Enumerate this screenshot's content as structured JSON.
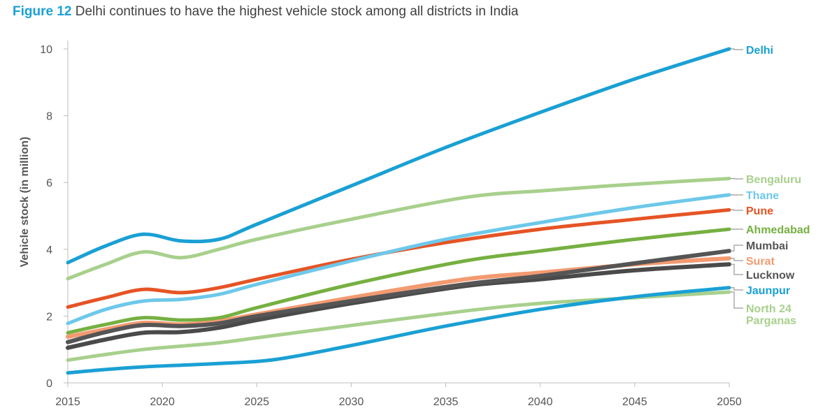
{
  "figure": {
    "number_label": "Figure 12",
    "title_text": "Delhi continues to have the highest vehicle stock among all districts in India"
  },
  "chart_data": {
    "type": "line",
    "title": "Figure 12 Delhi continues to have the highest vehicle stock among all districts in India",
    "xlabel": "",
    "ylabel": "Vehicle stock (in million)",
    "xlim": [
      2015,
      2050
    ],
    "ylim": [
      0,
      10
    ],
    "x_ticks": [
      2015,
      2020,
      2025,
      2030,
      2035,
      2040,
      2045,
      2050
    ],
    "y_ticks": [
      0,
      2,
      4,
      6,
      8,
      10
    ],
    "grid": false,
    "legend": "direct labels at right end of lines",
    "series": [
      {
        "name": "Delhi",
        "color": "#1aa0d4",
        "width": 5,
        "points": [
          [
            2015,
            3.6
          ],
          [
            2017,
            4.1
          ],
          [
            2019,
            4.45
          ],
          [
            2021,
            4.25
          ],
          [
            2023,
            4.3
          ],
          [
            2025,
            4.75
          ],
          [
            2030,
            5.9
          ],
          [
            2035,
            7.05
          ],
          [
            2040,
            8.1
          ],
          [
            2045,
            9.1
          ],
          [
            2050,
            10.0
          ]
        ]
      },
      {
        "name": "Bengaluru",
        "color": "#a8d08d",
        "width": 5,
        "points": [
          [
            2015,
            3.12
          ],
          [
            2017,
            3.55
          ],
          [
            2019,
            3.92
          ],
          [
            2021,
            3.75
          ],
          [
            2023,
            4.0
          ],
          [
            2025,
            4.3
          ],
          [
            2030,
            4.9
          ],
          [
            2036,
            5.55
          ],
          [
            2040,
            5.75
          ],
          [
            2045,
            5.95
          ],
          [
            2050,
            6.12
          ]
        ]
      },
      {
        "name": "Thane",
        "color": "#6dc8ea",
        "width": 5,
        "points": [
          [
            2015,
            1.78
          ],
          [
            2017,
            2.2
          ],
          [
            2019,
            2.45
          ],
          [
            2021,
            2.5
          ],
          [
            2023,
            2.65
          ],
          [
            2025,
            2.95
          ],
          [
            2030,
            3.65
          ],
          [
            2035,
            4.3
          ],
          [
            2040,
            4.8
          ],
          [
            2045,
            5.25
          ],
          [
            2050,
            5.63
          ]
        ]
      },
      {
        "name": "Pune",
        "color": "#e65425",
        "width": 5,
        "points": [
          [
            2015,
            2.27
          ],
          [
            2017,
            2.55
          ],
          [
            2019,
            2.8
          ],
          [
            2021,
            2.7
          ],
          [
            2023,
            2.85
          ],
          [
            2025,
            3.1
          ],
          [
            2030,
            3.7
          ],
          [
            2035,
            4.2
          ],
          [
            2040,
            4.6
          ],
          [
            2045,
            4.9
          ],
          [
            2050,
            5.18
          ]
        ]
      },
      {
        "name": "Ahmedabad",
        "color": "#76b041",
        "width": 5,
        "points": [
          [
            2015,
            1.5
          ],
          [
            2017,
            1.75
          ],
          [
            2019,
            1.95
          ],
          [
            2021,
            1.88
          ],
          [
            2023,
            1.95
          ],
          [
            2025,
            2.25
          ],
          [
            2030,
            2.95
          ],
          [
            2036,
            3.65
          ],
          [
            2040,
            3.95
          ],
          [
            2045,
            4.3
          ],
          [
            2050,
            4.6
          ]
        ]
      },
      {
        "name": "Mumbai",
        "color": "#555555",
        "width": 6,
        "points": [
          [
            2015,
            1.22
          ],
          [
            2017,
            1.52
          ],
          [
            2019,
            1.73
          ],
          [
            2021,
            1.7
          ],
          [
            2023,
            1.78
          ],
          [
            2025,
            2.0
          ],
          [
            2030,
            2.45
          ],
          [
            2036,
            2.95
          ],
          [
            2040,
            3.2
          ],
          [
            2045,
            3.58
          ],
          [
            2050,
            3.95
          ]
        ]
      },
      {
        "name": "Surat",
        "color": "#f39a71",
        "width": 6,
        "points": [
          [
            2015,
            1.38
          ],
          [
            2017,
            1.6
          ],
          [
            2019,
            1.8
          ],
          [
            2021,
            1.75
          ],
          [
            2023,
            1.85
          ],
          [
            2025,
            2.05
          ],
          [
            2030,
            2.55
          ],
          [
            2036,
            3.1
          ],
          [
            2040,
            3.3
          ],
          [
            2045,
            3.55
          ],
          [
            2050,
            3.73
          ]
        ]
      },
      {
        "name": "Lucknow",
        "color": "#4a4a4a",
        "width": 6,
        "points": [
          [
            2015,
            1.05
          ],
          [
            2017,
            1.3
          ],
          [
            2019,
            1.5
          ],
          [
            2021,
            1.52
          ],
          [
            2023,
            1.65
          ],
          [
            2025,
            1.88
          ],
          [
            2030,
            2.38
          ],
          [
            2036,
            2.9
          ],
          [
            2040,
            3.1
          ],
          [
            2045,
            3.37
          ],
          [
            2050,
            3.55
          ]
        ]
      },
      {
        "name": "North 24 Parganas",
        "color": "#a8d08d",
        "width": 5,
        "points": [
          [
            2015,
            0.68
          ],
          [
            2017,
            0.85
          ],
          [
            2019,
            1.0
          ],
          [
            2021,
            1.1
          ],
          [
            2023,
            1.2
          ],
          [
            2025,
            1.35
          ],
          [
            2030,
            1.72
          ],
          [
            2036,
            2.15
          ],
          [
            2040,
            2.38
          ],
          [
            2045,
            2.55
          ],
          [
            2050,
            2.72
          ]
        ]
      },
      {
        "name": "Jaunpur",
        "color": "#1aa0d4",
        "width": 5,
        "points": [
          [
            2015,
            0.3
          ],
          [
            2017,
            0.4
          ],
          [
            2019,
            0.48
          ],
          [
            2021,
            0.53
          ],
          [
            2023,
            0.58
          ],
          [
            2026,
            0.7
          ],
          [
            2030,
            1.12
          ],
          [
            2035,
            1.7
          ],
          [
            2040,
            2.2
          ],
          [
            2045,
            2.58
          ],
          [
            2050,
            2.85
          ]
        ]
      }
    ],
    "labels": [
      {
        "text": "Delhi",
        "series": "Delhi",
        "color": "#1aa0d4"
      },
      {
        "text": "Bengaluru",
        "series": "Bengaluru",
        "color": "#a8d08d"
      },
      {
        "text": "Thane",
        "series": "Thane",
        "color": "#6dc8ea"
      },
      {
        "text": "Pune",
        "series": "Pune",
        "color": "#e65425"
      },
      {
        "text": "Ahmedabad",
        "series": "Ahmedabad",
        "color": "#76b041"
      },
      {
        "text": "Mumbai",
        "series": "Mumbai",
        "color": "#555555"
      },
      {
        "text": "Surat",
        "series": "Surat",
        "color": "#f39a71"
      },
      {
        "text": "Lucknow",
        "series": "Lucknow",
        "color": "#555555"
      },
      {
        "text": "Jaunpur",
        "series": "Jaunpur",
        "color": "#1aa0d4"
      },
      {
        "text": "North 24",
        "series": "North 24 Parganas",
        "color": "#a8d08d"
      },
      {
        "text": "Parganas",
        "series": "North 24 Parganas",
        "color": "#a8d08d"
      }
    ]
  }
}
